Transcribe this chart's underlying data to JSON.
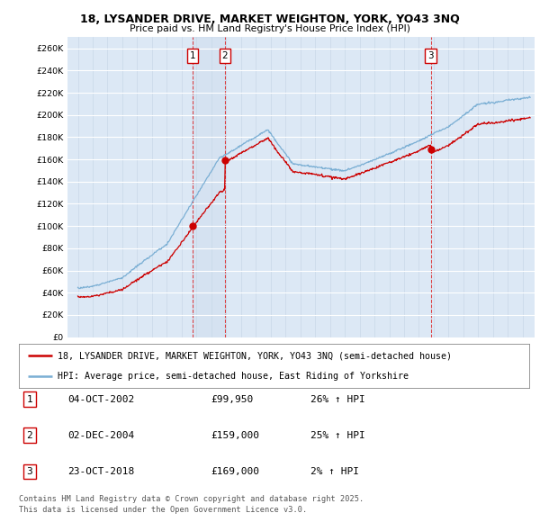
{
  "title1": "18, LYSANDER DRIVE, MARKET WEIGHTON, YORK, YO43 3NQ",
  "title2": "Price paid vs. HM Land Registry's House Price Index (HPI)",
  "legend_line1": "18, LYSANDER DRIVE, MARKET WEIGHTON, YORK, YO43 3NQ (semi-detached house)",
  "legend_line2": "HPI: Average price, semi-detached house, East Riding of Yorkshire",
  "sale1_date": "04-OCT-2002",
  "sale1_price": 99950,
  "sale1_pct": "26%",
  "sale2_date": "02-DEC-2004",
  "sale2_price": 159000,
  "sale2_pct": "25%",
  "sale3_date": "23-OCT-2018",
  "sale3_price": 169000,
  "sale3_pct": "2%",
  "footnote1": "Contains HM Land Registry data © Crown copyright and database right 2025.",
  "footnote2": "This data is licensed under the Open Government Licence v3.0.",
  "plot_bg_color": "#dce8f5",
  "red_color": "#cc0000",
  "blue_color": "#7bafd4",
  "ylim_min": 0,
  "ylim_max": 270000,
  "xmin": 1994.3,
  "xmax": 2025.8
}
